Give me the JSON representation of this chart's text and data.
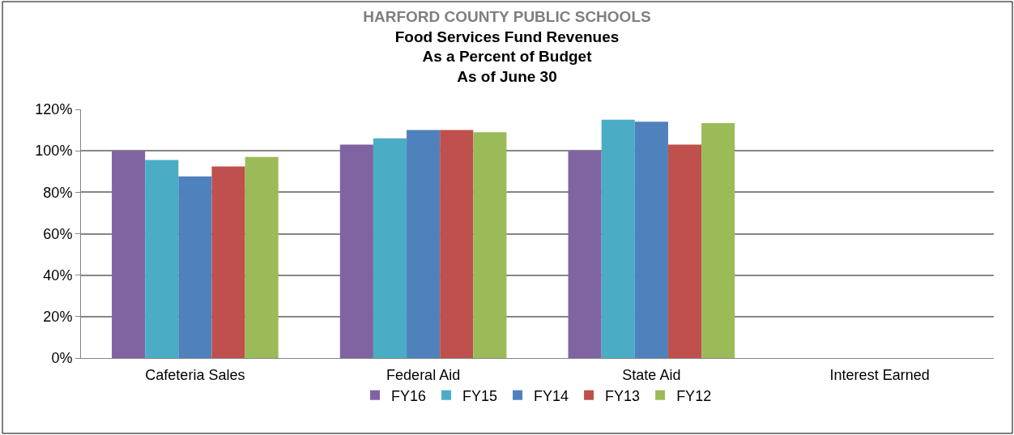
{
  "chart_data": {
    "type": "bar",
    "title": "HARFORD COUNTY PUBLIC SCHOOLS",
    "subtitle": "Food Services Fund Revenues\nAs a Percent of Budget\nAs of June 30",
    "categories": [
      "Cafeteria Sales",
      "Federal Aid",
      "State Aid",
      "Interest Earned"
    ],
    "series": [
      {
        "name": "FY16",
        "color": "#8064a2",
        "values": [
          100,
          103,
          100,
          null
        ]
      },
      {
        "name": "FY15",
        "color": "#4bacc6",
        "values": [
          95.6,
          106,
          115,
          null
        ]
      },
      {
        "name": "FY14",
        "color": "#4f81bd",
        "values": [
          87.7,
          110,
          114,
          null
        ]
      },
      {
        "name": "FY13",
        "color": "#c0504d",
        "values": [
          92.4,
          110,
          103,
          null
        ]
      },
      {
        "name": "FY12",
        "color": "#9bbb59",
        "values": [
          97,
          109,
          113.4,
          null
        ]
      }
    ],
    "ylim": [
      0,
      120
    ],
    "yticks": [
      {
        "value": 0,
        "label": "0%"
      },
      {
        "value": 20,
        "label": "20%"
      },
      {
        "value": 40,
        "label": "40%"
      },
      {
        "value": 60,
        "label": "60%"
      },
      {
        "value": 80,
        "label": "80%"
      },
      {
        "value": 100,
        "label": "100%"
      },
      {
        "value": 120,
        "label": "120%"
      }
    ],
    "grid": "y",
    "legend": "bottom"
  }
}
